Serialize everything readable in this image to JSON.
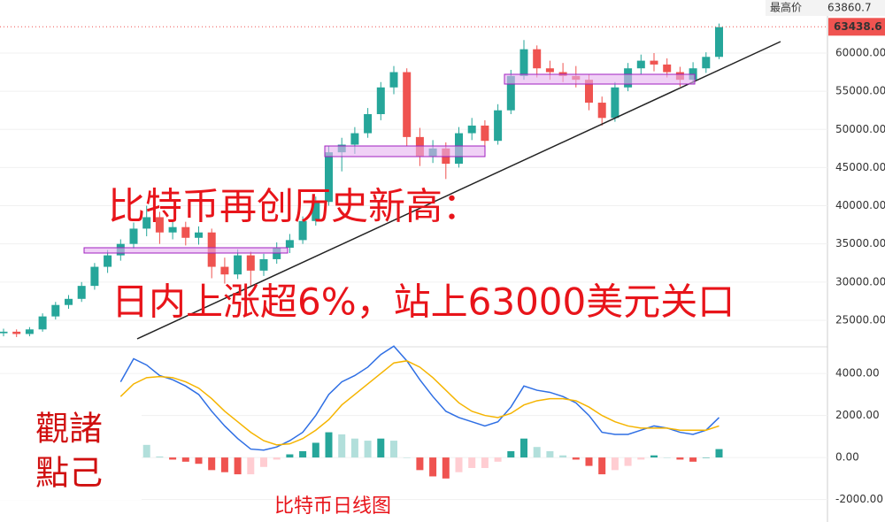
{
  "chart_data": [
    {
      "type": "candlestick",
      "annotations": [
        "比特币再创历史新高：",
        "日内上涨超6%，站上63000美元关口",
        "比特币日线图"
      ],
      "watermark": [
        "觀諸",
        "點己"
      ],
      "high_label": "最高价",
      "high_price": 63860.7,
      "last_price": 63438.6,
      "up_color": "#26a69a",
      "down_color": "#ef5350",
      "ylim": [
        21750,
        66950
      ],
      "yticks": [
        {
          "value": 25000,
          "label": "25000.00"
        },
        {
          "value": 30000,
          "label": "30000.00"
        },
        {
          "value": 35000,
          "label": "35000.00"
        },
        {
          "value": 40000,
          "label": "40000.00"
        },
        {
          "value": 45000,
          "label": "45000.00"
        },
        {
          "value": 50000,
          "label": "50000.00"
        },
        {
          "value": 55000,
          "label": "55000.00"
        },
        {
          "value": 60000,
          "label": "60000.00"
        }
      ],
      "ohlc": [
        [
          23300,
          23900,
          22900,
          23500
        ],
        [
          23500,
          23800,
          22800,
          23200
        ],
        [
          23200,
          24100,
          22900,
          23800
        ],
        [
          23800,
          25900,
          23500,
          25500
        ],
        [
          25500,
          27400,
          25100,
          27000
        ],
        [
          27000,
          28300,
          26500,
          27800
        ],
        [
          27800,
          30000,
          27400,
          29500
        ],
        [
          29500,
          32500,
          29000,
          32000
        ],
        [
          32000,
          34200,
          31200,
          33500
        ],
        [
          33500,
          35600,
          32800,
          35000
        ],
        [
          35000,
          37800,
          34400,
          37000
        ],
        [
          37000,
          40000,
          36000,
          38500
        ],
        [
          38500,
          39200,
          35000,
          36500
        ],
        [
          36500,
          38200,
          35600,
          37200
        ],
        [
          37200,
          37900,
          34800,
          35800
        ],
        [
          35800,
          37300,
          34900,
          36500
        ],
        [
          36500,
          37000,
          30500,
          32000
        ],
        [
          32000,
          33200,
          29800,
          31000
        ],
        [
          31000,
          34300,
          30400,
          33500
        ],
        [
          33500,
          34000,
          29500,
          31500
        ],
        [
          31500,
          33700,
          30800,
          33000
        ],
        [
          33000,
          35200,
          32400,
          34500
        ],
        [
          34500,
          36300,
          33800,
          35500
        ],
        [
          35500,
          38600,
          35000,
          38000
        ],
        [
          38000,
          41200,
          37400,
          40500
        ],
        [
          40500,
          47800,
          40000,
          47000
        ],
        [
          47000,
          48900,
          44500,
          48000
        ],
        [
          48000,
          50300,
          46800,
          49500
        ],
        [
          49500,
          52800,
          48900,
          52000
        ],
        [
          52000,
          56200,
          51200,
          55500
        ],
        [
          55500,
          58300,
          54600,
          57500
        ],
        [
          57500,
          58000,
          47800,
          49000
        ],
        [
          49000,
          50200,
          45200,
          46500
        ],
        [
          46500,
          48600,
          45600,
          47500
        ],
        [
          47500,
          48300,
          43500,
          45500
        ],
        [
          45500,
          50300,
          45000,
          49500
        ],
        [
          49500,
          51500,
          48600,
          50500
        ],
        [
          50500,
          51200,
          47600,
          48500
        ],
        [
          48500,
          53300,
          48000,
          52500
        ],
        [
          52500,
          57800,
          52000,
          57000
        ],
        [
          57000,
          61700,
          56500,
          60500
        ],
        [
          60500,
          61000,
          56800,
          58000
        ],
        [
          58000,
          59000,
          56500,
          57500
        ],
        [
          57500,
          58700,
          56200,
          57000
        ],
        [
          57000,
          58300,
          55500,
          56500
        ],
        [
          56500,
          57200,
          52500,
          53500
        ],
        [
          53500,
          54300,
          50500,
          51500
        ],
        [
          51500,
          56200,
          51000,
          55500
        ],
        [
          55500,
          58700,
          55000,
          58000
        ],
        [
          58000,
          59800,
          57200,
          59000
        ],
        [
          59000,
          60000,
          57600,
          58500
        ],
        [
          58500,
          59300,
          56800,
          57500
        ],
        [
          57500,
          58200,
          55600,
          56500
        ],
        [
          56500,
          58800,
          56000,
          58000
        ],
        [
          58000,
          60100,
          57400,
          59500
        ],
        [
          59500,
          63860,
          59200,
          63400
        ]
      ]
    },
    {
      "type": "macd",
      "ylim": [
        -3070,
        5140
      ],
      "yticks": [
        {
          "value": -2000,
          "label": "-2000.00"
        },
        {
          "value": 0,
          "label": "0.00"
        },
        {
          "value": 2000,
          "label": "2000.00"
        },
        {
          "value": 4000,
          "label": "4000.00"
        }
      ],
      "hist_colors": [
        "#26a69a",
        "#b2dfdb",
        "#ef5350",
        "#ffcdd2"
      ],
      "series": [
        {
          "color": "#2f6fe4",
          "values": [
            null,
            null,
            null,
            null,
            null,
            null,
            null,
            null,
            null,
            3600,
            4700,
            4400,
            3900,
            3700,
            3400,
            3000,
            2200,
            1500,
            900,
            400,
            350,
            500,
            800,
            1200,
            2000,
            3000,
            3600,
            3900,
            4300,
            4900,
            5300,
            4600,
            3700,
            2900,
            2200,
            1900,
            1700,
            1500,
            1700,
            2400,
            3400,
            3200,
            3100,
            2900,
            2600,
            2000,
            1200,
            1100,
            1100,
            1300,
            1500,
            1400,
            1200,
            1100,
            1300,
            1900
          ]
        },
        {
          "color": "#f5b400",
          "values": [
            null,
            null,
            null,
            null,
            null,
            null,
            null,
            null,
            null,
            2900,
            3500,
            3800,
            3850,
            3800,
            3600,
            3300,
            2800,
            2200,
            1700,
            1200,
            800,
            600,
            650,
            900,
            1300,
            1800,
            2500,
            3000,
            3500,
            4000,
            4500,
            4600,
            4300,
            3800,
            3200,
            2600,
            2200,
            2000,
            1900,
            2100,
            2500,
            2700,
            2800,
            2800,
            2700,
            2400,
            2000,
            1700,
            1500,
            1400,
            1400,
            1400,
            1300,
            1300,
            1300,
            1500
          ]
        }
      ],
      "histogram": [
        null,
        null,
        null,
        null,
        null,
        null,
        null,
        null,
        null,
        700,
        1200,
        600,
        50,
        -100,
        -200,
        -300,
        -600,
        -700,
        -800,
        -800,
        -450,
        -100,
        150,
        300,
        700,
        1200,
        1100,
        900,
        800,
        900,
        800,
        0,
        -600,
        -900,
        -1000,
        -700,
        -500,
        -500,
        -200,
        300,
        900,
        500,
        300,
        100,
        -100,
        -400,
        -800,
        -600,
        -400,
        -100,
        100,
        0,
        -100,
        -200,
        0,
        400
      ]
    }
  ]
}
